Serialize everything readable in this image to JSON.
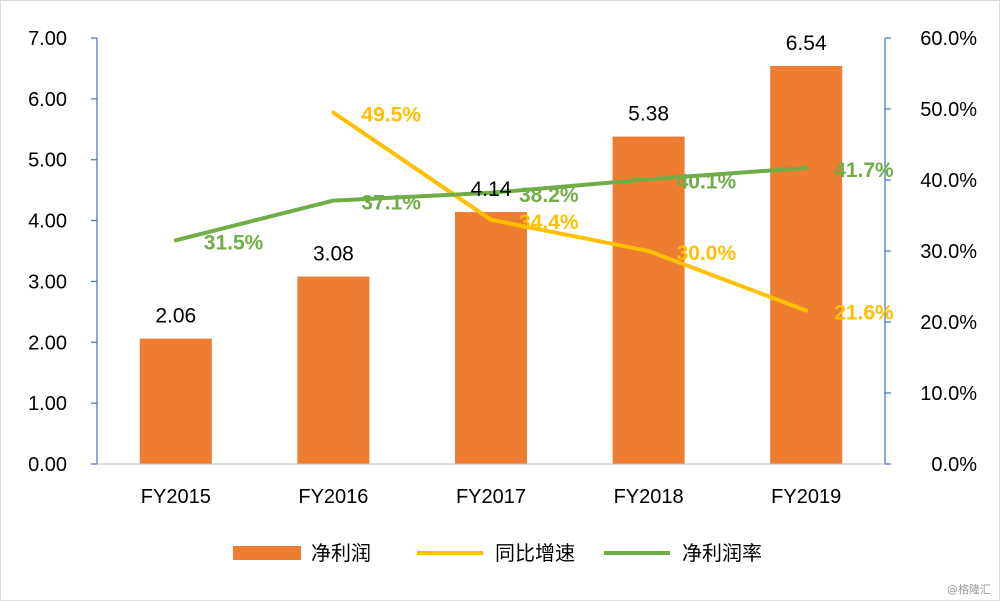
{
  "chart_data": {
    "type": "bar",
    "categories": [
      "FY2015",
      "FY2016",
      "FY2017",
      "FY2018",
      "FY2019"
    ],
    "series": [
      {
        "name": "净利润",
        "type": "bar",
        "axis": "left",
        "color": "#ED7D31",
        "values": [
          2.06,
          3.08,
          4.14,
          5.38,
          6.54
        ],
        "labels": [
          "2.06",
          "3.08",
          "4.14",
          "5.38",
          "6.54"
        ]
      },
      {
        "name": "同比增速",
        "type": "line",
        "axis": "right",
        "color": "#FFC000",
        "values": [
          null,
          49.5,
          34.4,
          30.0,
          21.6
        ],
        "labels": [
          "",
          "49.5%",
          "34.4%",
          "30.0%",
          "21.6%"
        ]
      },
      {
        "name": "净利润率",
        "type": "line",
        "axis": "right",
        "color": "#70AD47",
        "values": [
          31.5,
          37.1,
          38.2,
          40.1,
          41.7
        ],
        "labels": [
          "31.5%",
          "37.1%",
          "38.2%",
          "40.1%",
          "41.7%"
        ]
      }
    ],
    "y_left": {
      "range": [
        0,
        7
      ],
      "ticks": [
        "0.00",
        "1.00",
        "2.00",
        "3.00",
        "4.00",
        "5.00",
        "6.00",
        "7.00"
      ]
    },
    "y_right": {
      "range": [
        0,
        60
      ],
      "ticks": [
        "0.0%",
        "10.0%",
        "20.0%",
        "30.0%",
        "40.0%",
        "50.0%",
        "60.0%"
      ]
    },
    "grid": false,
    "legend_position": "bottom"
  },
  "watermark": "@格隆汇"
}
